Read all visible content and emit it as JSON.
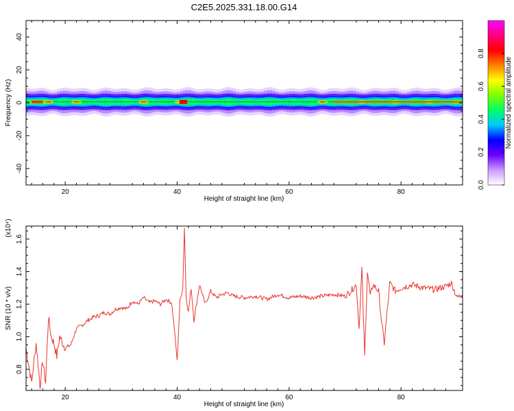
{
  "title": "C2E5.2025.331.18.00.G14",
  "chart_data": [
    {
      "type": "heatmap",
      "xlabel": "Height of straight line (km)",
      "ylabel": "Frequency (Hz)",
      "xlim": [
        13,
        91
      ],
      "ylim": [
        -50,
        50
      ],
      "xticks": [
        20,
        40,
        60,
        80
      ],
      "yticks": [
        -40,
        -20,
        0,
        20,
        40
      ],
      "xtick_labels": [
        "20",
        "40",
        "60",
        "80"
      ],
      "ytick_labels": [
        "-40",
        "-20",
        "0",
        "20",
        "40"
      ],
      "band_center_hz": 0.5,
      "band_halfwidth_hz": 6,
      "colorbar": {
        "label": "Normalized spectral amplitude",
        "range": [
          0.0,
          1.0
        ],
        "ticks": [
          0.0,
          0.2,
          0.4,
          0.6,
          0.8
        ],
        "tick_labels": [
          "0.0",
          "0.2",
          "0.4",
          "0.6",
          "0.8"
        ],
        "colors": [
          "#ffffff",
          "#c89bff",
          "#6a00ff",
          "#0000ff",
          "#00c8ff",
          "#00ff66",
          "#7cff00",
          "#ffff00",
          "#ff7f00",
          "#ff0000",
          "#ff0080",
          "#ff00ff"
        ]
      },
      "hotspots_km": [
        14.5,
        15.5,
        17,
        22,
        34,
        40.5,
        41,
        66,
        73,
        79,
        85,
        90
      ]
    },
    {
      "type": "line",
      "xlabel": "Height of straight line (km)",
      "ylabel": "SNR (10 * v/v)",
      "y_multiplier": "(x10⁴)",
      "xlim": [
        13,
        91
      ],
      "ylim": [
        0.67,
        1.68
      ],
      "xticks": [
        20,
        40,
        60,
        80
      ],
      "yticks": [
        0.8,
        1.0,
        1.2,
        1.4,
        1.6
      ],
      "xtick_labels": [
        "20",
        "40",
        "60",
        "80"
      ],
      "ytick_labels": [
        "0.8",
        "1.0",
        "1.2",
        "1.4",
        "1.6"
      ],
      "line_color": "#e8322c",
      "x": [
        13,
        14,
        14.8,
        15.5,
        16,
        16.5,
        17,
        17.5,
        18,
        18.5,
        19,
        20,
        21,
        22,
        23,
        24,
        25,
        26,
        27,
        28,
        29,
        30,
        31,
        32,
        33,
        34,
        35,
        36,
        37,
        38,
        39,
        39.5,
        40,
        40.5,
        41,
        41.3,
        41.6,
        42,
        42.5,
        43,
        44,
        45,
        46,
        47,
        48,
        49,
        50,
        52,
        54,
        56,
        58,
        60,
        62,
        64,
        66,
        68,
        70,
        71,
        72,
        72.5,
        73,
        73.5,
        74,
        74.5,
        75,
        76,
        76.5,
        77,
        78,
        79,
        80,
        82,
        84,
        86,
        88,
        89,
        90,
        91
      ],
      "y": [
        0.93,
        0.72,
        0.96,
        0.7,
        0.85,
        0.72,
        1.12,
        1.0,
        0.96,
        0.88,
        1.0,
        0.93,
        0.95,
        1.05,
        1.07,
        1.1,
        1.12,
        1.13,
        1.15,
        1.14,
        1.17,
        1.18,
        1.17,
        1.22,
        1.2,
        1.24,
        1.21,
        1.22,
        1.2,
        1.23,
        1.21,
        1.05,
        0.85,
        1.22,
        1.3,
        1.67,
        1.25,
        1.15,
        1.3,
        1.1,
        1.32,
        1.2,
        1.28,
        1.24,
        1.26,
        1.27,
        1.25,
        1.24,
        1.25,
        1.23,
        1.26,
        1.24,
        1.25,
        1.24,
        1.25,
        1.26,
        1.25,
        1.28,
        1.32,
        1.05,
        1.42,
        0.88,
        1.4,
        1.25,
        1.32,
        1.28,
        1.1,
        0.96,
        1.33,
        1.28,
        1.3,
        1.32,
        1.3,
        1.29,
        1.31,
        1.33,
        1.24,
        1.26
      ]
    }
  ]
}
